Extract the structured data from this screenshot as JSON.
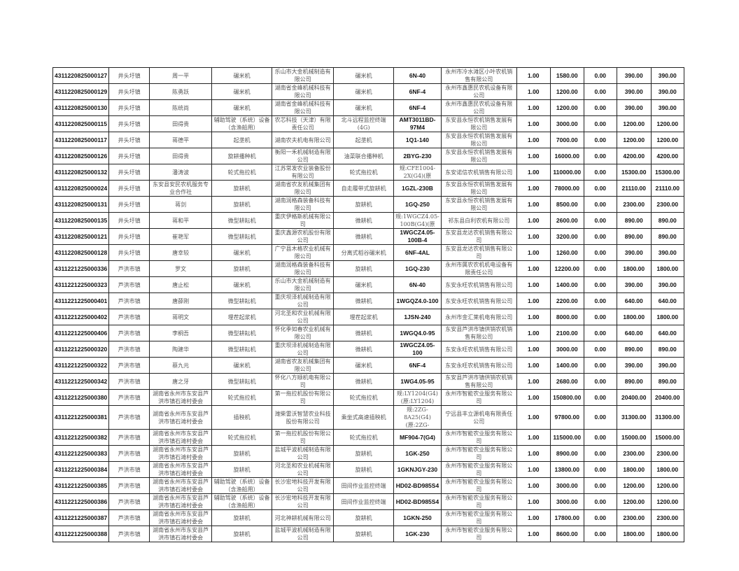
{
  "rows": [
    [
      "4311220825000127",
      "井头圩镇",
      "周一平",
      "碾米机",
      "乐山市大金机械制造有限公司",
      "碾米机",
      "6N-40",
      "永州市冷水滩区小叶农机销售有限公司",
      "1.00",
      "1580.00",
      "0.00",
      "390.00",
      "390.00"
    ],
    [
      "4311220825000129",
      "井头圩镇",
      "陈勇跃",
      "碾米机",
      "湖南省金峰机械科技有限公司",
      "碾米机",
      "6NF-4",
      "永州市鑫惠民农机设备有限公司",
      "1.00",
      "1200.00",
      "0.00",
      "390.00",
      "390.00"
    ],
    [
      "4311220825000130",
      "井头圩镇",
      "陈统尚",
      "碾米机",
      "湖南省金峰机械科技有限公司",
      "碾米机",
      "6NF-4",
      "永州市鑫惠民农机设备有限公司",
      "1.00",
      "1200.00",
      "0.00",
      "390.00",
      "390.00"
    ],
    [
      "4311220825000115",
      "井头圩镇",
      "田得贵",
      "辅助驾驶（系统）设备（含渔船用）",
      "农芯科技（天津）有限责任公司",
      "北斗远程监控终端(4G)",
      "AMT3011BD-97M4",
      "东安县永恒农机销售发展有限公司",
      "1.00",
      "3000.00",
      "0.00",
      "1200.00",
      "1200.00"
    ],
    [
      "4311220825000117",
      "井头圩镇",
      "蒋德平",
      "起垄机",
      "湖南农夫机电有限公司",
      "起垄机",
      "1Q1-140",
      "东安县永恒农机销售发展有限公司",
      "1.00",
      "7000.00",
      "0.00",
      "1200.00",
      "1200.00"
    ],
    [
      "4311220825000126",
      "井头圩镇",
      "田得贵",
      "旋耕播种机",
      "衡阳一禾机械制造有限公司",
      "油菜联合播种机",
      "2BYG-230",
      "东安县永恒农机销售发展有限公司",
      "1.00",
      "16000.00",
      "0.00",
      "4200.00",
      "4200.00"
    ],
    [
      "4311220825000132",
      "井头圩镇",
      "潘涛波",
      "轮式拖拉机",
      "江苏常发农业装备股份有限公司",
      "轮式拖拉机",
      "规:CFE1004-2X(G4)(原",
      "东安诺信农机销售有限公司",
      "1.00",
      "110000.00",
      "0.00",
      "15300.00",
      "15300.00"
    ],
    [
      "4311220825000024",
      "井头圩镇",
      "东安县安民农机服务专业合作社",
      "旋耕机",
      "湖南省农友机械集团有限公司",
      "自走履带式旋耕机",
      "1GZL-230B",
      "东安县永恒农机销售发展有限公司",
      "1.00",
      "78000.00",
      "0.00",
      "21110.00",
      "21110.00"
    ],
    [
      "4311220825000131",
      "井头圩镇",
      "蒋剑",
      "旋耕机",
      "湖南润格森装备科技有限公司",
      "旋耕机",
      "1GQ-250",
      "东安县永恒农机销售发展有限公司",
      "1.00",
      "8500.00",
      "0.00",
      "2300.00",
      "2300.00"
    ],
    [
      "4311220825000135",
      "井头圩镇",
      "蒋和平",
      "微型耕耘机",
      "重庆伊格斯机械有限公司",
      "微耕机",
      "规:1WGCZ4.05-100B(G4)(原",
      "祁东县白利农机有限公司",
      "1.00",
      "2600.00",
      "0.00",
      "890.00",
      "890.00"
    ],
    [
      "4311220825000121",
      "井头圩镇",
      "崔艳军",
      "微型耕耘机",
      "重庆鑫源农机股份有限公司",
      "微耕机",
      "1WGCZ4.05-100B-4",
      "东安县龙达农机销售有限公司",
      "1.00",
      "3200.00",
      "0.00",
      "890.00",
      "890.00"
    ],
    [
      "4311220825000128",
      "井头圩镇",
      "唐幸较",
      "碾米机",
      "广宁县木格农业机械有限公司",
      "分离式稻谷碾米机",
      "6NF-4AL",
      "东安县龙达农机销售有限公司",
      "1.00",
      "1260.00",
      "0.00",
      "390.00",
      "390.00"
    ],
    [
      "4311221225000336",
      "芦洪市镇",
      "罗文",
      "旋耕机",
      "湖南润格森装备科技有限公司",
      "旋耕机",
      "1GQ-230",
      "永州市属农农机机电设备有限责任公司",
      "1.00",
      "12200.00",
      "0.00",
      "1800.00",
      "1800.00"
    ],
    [
      "4311221225000323",
      "芦洪市镇",
      "唐止松",
      "碾米机",
      "乐山市大金机械制造有限公司",
      "碾米机",
      "6N-40",
      "东安永旺农机销售有限公司",
      "1.00",
      "1400.00",
      "0.00",
      "390.00",
      "390.00"
    ],
    [
      "4311221225000401",
      "芦洪市镇",
      "唐薛刚",
      "微型耕耘机",
      "重庆坝泽机械制造有限公司",
      "微耕机",
      "1WGQZ4.0-100",
      "东安永旺农机销售有限公司",
      "1.00",
      "2200.00",
      "0.00",
      "640.00",
      "640.00"
    ],
    [
      "4311221225000402",
      "芦洪市镇",
      "蒋明文",
      "埋茬起浆机",
      "河北圣和农业机械有限公司",
      "埋茬起浆机",
      "1JSN-240",
      "永州市金汇莱机电有限公司",
      "1.00",
      "8000.00",
      "0.00",
      "1800.00",
      "1800.00"
    ],
    [
      "4311221225000406",
      "芦洪市镇",
      "李桐吾",
      "微型耕耘机",
      "怀化季如春农业机械有限公司",
      "微耕机",
      "1WGQ4.0-95",
      "东安县芦洪市镇供销农机销售有限公司",
      "1.00",
      "2100.00",
      "0.00",
      "640.00",
      "640.00"
    ],
    [
      "4311221225000320",
      "芦洪市镇",
      "陶建华",
      "微型耕耘机",
      "重庆坝泽机械制造有限公司",
      "微耕机",
      "1WGCZ4.05-100",
      "东安永旺农机销售有限公司",
      "1.00",
      "3000.00",
      "0.00",
      "890.00",
      "890.00"
    ],
    [
      "4311221225000322",
      "芦洪市镇",
      "蔡九元",
      "碾米机",
      "湖南省农友机械集团有限公司",
      "碾米机",
      "6NF-4",
      "东安永旺农机销售有限公司",
      "1.00",
      "1400.00",
      "0.00",
      "390.00",
      "390.00"
    ],
    [
      "4311221225000342",
      "芦洪市镇",
      "唐之牙",
      "微型耕耘机",
      "怀化八方顺机电有限公司",
      "微耕机",
      "1WG4.05-95",
      "东安县芦洪市镇供销农机销售有限公司",
      "1.00",
      "2680.00",
      "0.00",
      "890.00",
      "890.00"
    ],
    [
      "4311221225000380",
      "芦洪市镇",
      "湖南省永州市东安县芦洪市镇石滩村委会",
      "轮式拖拉机",
      "第一拖拉机股份有限公司",
      "轮式拖拉机",
      "规:LY1204(G4)(原:LY1204)",
      "永州市智能农业服务有限公司",
      "1.00",
      "150800.00",
      "0.00",
      "20400.00",
      "20400.00"
    ],
    [
      "4311221225000381",
      "芦洪市镇",
      "湖南省永州市东安县芦洪市镇石滩村委会",
      "插秧机",
      "潍柴雷沃智慧农业科技股份有限公司",
      "乘坐式高速插秧机",
      "规:2ZG-8A25(G4)(原:2ZG-",
      "宁远县丰立源机电有限责任公司",
      "1.00",
      "97800.00",
      "0.00",
      "31300.00",
      "31300.00"
    ],
    [
      "4311221225000382",
      "芦洪市镇",
      "湖南省永州市东安县芦洪市镇石滩村委会",
      "轮式拖拉机",
      "第一拖拉机股份有限公司",
      "轮式拖拉机",
      "MF904-7(G4)",
      "永州市智能农业服务有限公司",
      "1.00",
      "115000.00",
      "0.00",
      "15000.00",
      "15000.00"
    ],
    [
      "4311221225000383",
      "芦洪市镇",
      "湖南省永州市东安县芦洪市镇石滩村委会",
      "旋耕机",
      "盐城平波机械制造有限公司",
      "旋耕机",
      "1GK-250",
      "永州市智能农业服务有限公司",
      "1.00",
      "8900.00",
      "0.00",
      "2300.00",
      "2300.00"
    ],
    [
      "4311221225000384",
      "芦洪市镇",
      "湖南省永州市东安县芦洪市镇石滩村委会",
      "旋耕机",
      "河北圣和农业机械有限公司",
      "旋耕机",
      "1GKNJGY-230",
      "永州市智能农业服务有限公司",
      "1.00",
      "13800.00",
      "0.00",
      "1800.00",
      "1800.00"
    ],
    [
      "4311221225000385",
      "芦洪市镇",
      "湖南省永州市东安县芦洪市镇石滩村委会",
      "辅助驾驶（系统）设备（含渔船用）",
      "长沙宏地科技开发有限公司",
      "田间作业监控终端",
      "HD02-BD985S4",
      "永州市智能农业服务有限公司",
      "1.00",
      "3000.00",
      "0.00",
      "1200.00",
      "1200.00"
    ],
    [
      "4311221225000386",
      "芦洪市镇",
      "湖南省永州市东安县芦洪市镇石滩村委会",
      "辅助驾驶（系统）设备（含渔船用）",
      "长沙宏地科技开发有限公司",
      "田间作业监控终端",
      "HD02-BD985S4",
      "永州市智能农业服务有限公司",
      "1.00",
      "3000.00",
      "0.00",
      "1200.00",
      "1200.00"
    ],
    [
      "4311221225000387",
      "芦洪市镇",
      "湖南省永州市东安县芦洪市镇石滩村委会",
      "旋耕机",
      "河北神耕机械有限公司",
      "旋耕机",
      "1GKN-250",
      "永州市智能农业服务有限公司",
      "1.00",
      "17800.00",
      "0.00",
      "2300.00",
      "2300.00"
    ],
    [
      "4311221225000388",
      "芦洪市镇",
      "湖南省永州市东安县芦洪市镇石滩村委会",
      "旋耕机",
      "盐城平波机械制造有限公司",
      "旋耕机",
      "1GK-230",
      "永州市智能农业服务有限公司",
      "1.00",
      "8600.00",
      "0.00",
      "1800.00",
      "1800.00"
    ]
  ]
}
